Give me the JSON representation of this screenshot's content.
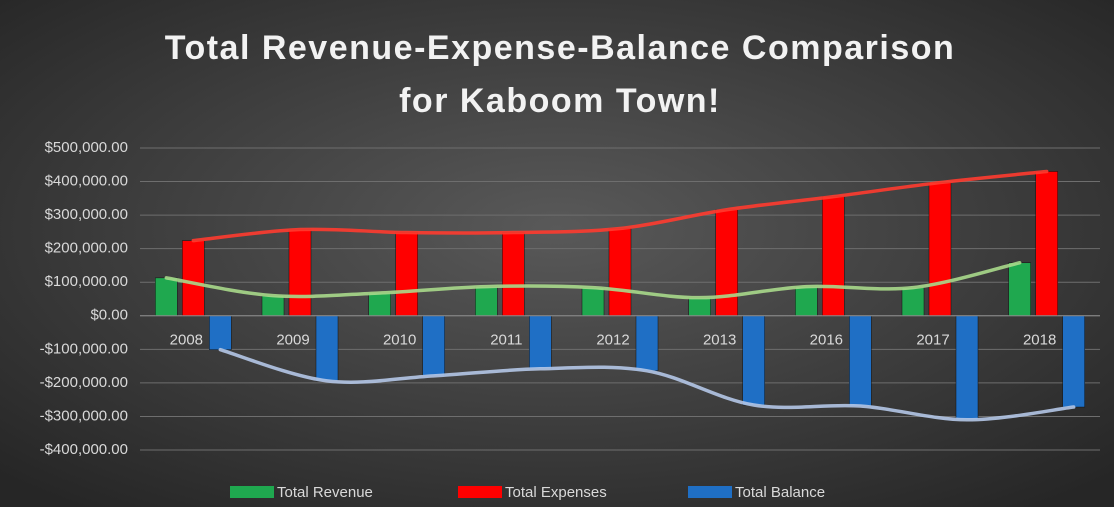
{
  "chart_data": {
    "type": "bar",
    "title": [
      "Total Revenue-Expense-Balance Comparison",
      "for Kaboom Town!"
    ],
    "categories": [
      "2008",
      "2009",
      "2010",
      "2011",
      "2012",
      "2013",
      "2016",
      "2017",
      "2018"
    ],
    "series": [
      {
        "name": "Total Revenue",
        "color": "#1fa84f",
        "trend_color": "#a9d98b",
        "values": [
          113000,
          60000,
          68000,
          87000,
          84000,
          54000,
          87000,
          84000,
          158000
        ]
      },
      {
        "name": "Total Expenses",
        "color": "#ff0000",
        "trend_color": "#ff3b2f",
        "values": [
          224000,
          257000,
          248000,
          248000,
          260000,
          316000,
          355000,
          397000,
          430000
        ]
      },
      {
        "name": "Total Balance",
        "color": "#1f6fc5",
        "trend_color": "#b4c7e7",
        "values": [
          -101000,
          -194000,
          -179000,
          -158000,
          -164000,
          -266000,
          -269000,
          -310000,
          -272000
        ]
      }
    ],
    "ylim": [
      -400000,
      500000
    ],
    "yticks": [
      {
        "value": -400000,
        "label": "-$400,000.00"
      },
      {
        "value": -300000,
        "label": "-$300,000.00"
      },
      {
        "value": -200000,
        "label": "-$200,000.00"
      },
      {
        "value": -100000,
        "label": "-$100,000.00"
      },
      {
        "value": 0,
        "label": "$0.00"
      },
      {
        "value": 100000,
        "label": "$100,000.00"
      },
      {
        "value": 200000,
        "label": "$200,000.00"
      },
      {
        "value": 300000,
        "label": "$300,000.00"
      },
      {
        "value": 400000,
        "label": "$400,000.00"
      },
      {
        "value": 500000,
        "label": "$500,000.00"
      }
    ],
    "grid": true,
    "trendlines": true,
    "legend": "bottom"
  }
}
